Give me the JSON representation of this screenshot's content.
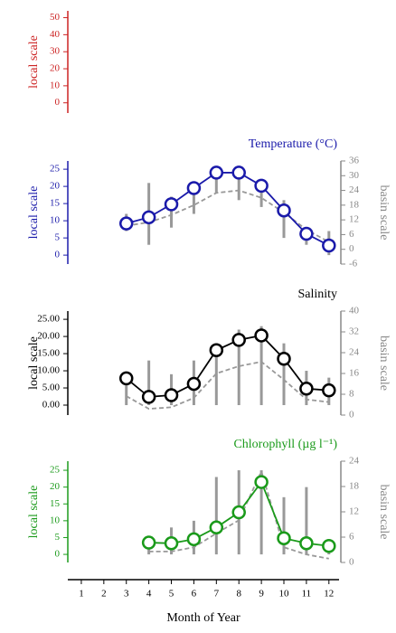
{
  "chart_data": [
    {
      "type": "line",
      "ylabel": "local scale",
      "color": "#cc2222",
      "ylim": [
        -6,
        54
      ],
      "yticks": [
        0,
        10,
        20,
        30,
        40,
        50
      ]
    },
    {
      "type": "line",
      "title": "Temperature (°C)",
      "ylabel": "local scale",
      "y2label": "basin scale",
      "color": "#1a1aaa",
      "ylim": [
        -2.6,
        27.4
      ],
      "yticks": [
        0,
        5,
        10,
        15,
        20,
        25
      ],
      "y2lim": [
        -6,
        36
      ],
      "y2ticks": [
        -6,
        0,
        6,
        12,
        18,
        24,
        30,
        36
      ],
      "x": [
        3,
        4,
        5,
        6,
        7,
        8,
        9,
        10,
        11,
        12
      ],
      "series": [
        {
          "color": "#1a1aaa",
          "values": [
            9.2,
            11,
            14.8,
            19.5,
            24,
            24,
            20.2,
            13,
            6.2,
            2.8
          ]
        },
        {
          "color": "#999999",
          "axis": "y2",
          "dash": true,
          "values": [
            9.6,
            11,
            14,
            18,
            23,
            24,
            21,
            15,
            8,
            3
          ]
        }
      ],
      "range_low": [
        7,
        3,
        8,
        12,
        18,
        16,
        14,
        5,
        3,
        0
      ],
      "range_high": [
        12,
        21,
        17,
        21,
        25,
        25,
        22,
        16,
        8,
        7
      ]
    },
    {
      "type": "line",
      "title": "Salinity",
      "ylabel": "local scale",
      "y2label": "basin scale",
      "color": "#000000",
      "ylim": [
        -2.9,
        27.4
      ],
      "yticks": [
        {
          "value": 0,
          "label": "0.00"
        },
        {
          "value": 5,
          "label": "5.00"
        },
        {
          "value": 10,
          "label": "10.00"
        },
        {
          "value": 15,
          "label": "15.00"
        },
        {
          "value": 20,
          "label": "20.00"
        },
        {
          "value": 25,
          "label": "25.00"
        }
      ],
      "y2lim": [
        0,
        40
      ],
      "y2ticks": [
        0,
        8,
        16,
        24,
        32,
        40
      ],
      "x": [
        3,
        4,
        5,
        6,
        7,
        8,
        9,
        10,
        11,
        12
      ],
      "series": [
        {
          "color": "#000000",
          "values": [
            7.8,
            2.4,
            2.9,
            6.2,
            16,
            19,
            20.3,
            13.5,
            4.8,
            4.3
          ]
        },
        {
          "color": "#999999",
          "axis": "y2",
          "dash": true,
          "values": [
            7.3,
            2.4,
            3,
            6.6,
            16,
            18.8,
            20.5,
            13.6,
            6,
            5
          ]
        }
      ],
      "range_low": [
        0,
        0,
        0,
        0,
        0,
        0,
        0,
        0,
        0,
        0
      ],
      "range_high": [
        8,
        13,
        9,
        13,
        18,
        22,
        23,
        18,
        10,
        8
      ]
    },
    {
      "type": "line",
      "title": "Chlorophyll (µg l⁻¹)",
      "ylabel": "local scale",
      "y2label": "basin scale",
      "color": "#1a9a1a",
      "ylim": [
        -2.4,
        27.7
      ],
      "yticks": [
        0,
        5,
        10,
        15,
        20,
        25
      ],
      "y2lim": [
        0,
        24
      ],
      "y2ticks": [
        0,
        6,
        12,
        18,
        24
      ],
      "x": [
        4,
        5,
        6,
        7,
        8,
        9,
        10,
        11,
        12
      ],
      "series": [
        {
          "color": "#1a9a1a",
          "values": [
            3.5,
            3.3,
            4.5,
            8,
            12.5,
            21.5,
            4.8,
            3.3,
            2.5
          ]
        },
        {
          "color": "#999999",
          "axis": "y2",
          "dash": true,
          "values": [
            2.6,
            2.6,
            3.6,
            6.9,
            10,
            21.6,
            3.6,
            1.9,
            0.9
          ]
        }
      ],
      "range_low": [
        0,
        0,
        0,
        0,
        0,
        0,
        0,
        0,
        0
      ],
      "range_high": [
        5.5,
        8,
        10,
        23,
        25,
        25,
        17,
        20,
        3
      ],
      "xlabel": "Month of Year",
      "xlim": [
        0.4,
        12.45
      ],
      "xticks": [
        1,
        2,
        3,
        4,
        5,
        6,
        7,
        8,
        9,
        10,
        11,
        12
      ]
    }
  ]
}
